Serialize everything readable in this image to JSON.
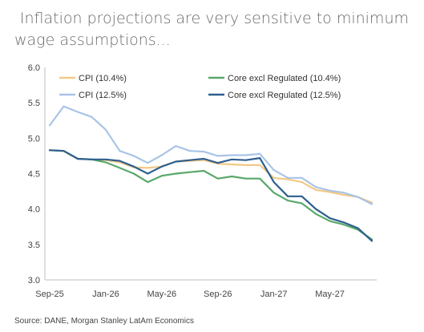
{
  "header": {
    "title_line1": "Inflation projections are very sensitive to minimum",
    "title_line2": "wage assumptions..."
  },
  "footer": {
    "source": "Source: DANE, Morgan Stanley LatAm Economics"
  },
  "chart_data": {
    "type": "line",
    "xlabel": "",
    "ylabel": "",
    "ylim": [
      3.0,
      6.0
    ],
    "yticks": [
      "6.0",
      "5.5",
      "5.0",
      "4.5",
      "4.0",
      "3.5",
      "3.0"
    ],
    "xticks": [
      "Sep-25",
      "Jan-26",
      "May-26",
      "Sep-26",
      "Jan-27",
      "May-27"
    ],
    "x": [
      "Sep-25",
      "Oct-25",
      "Nov-25",
      "Dec-25",
      "Jan-26",
      "Feb-26",
      "Mar-26",
      "Apr-26",
      "May-26",
      "Jun-26",
      "Jul-26",
      "Aug-26",
      "Sep-26",
      "Oct-26",
      "Nov-26",
      "Dec-26",
      "Jan-27",
      "Feb-27",
      "Mar-27",
      "Apr-27",
      "May-27",
      "Jun-27",
      "Jul-27",
      "Aug-27"
    ],
    "grid": false,
    "legend_position": "top",
    "series": [
      {
        "name": "CPI (10.4%)",
        "color": "#f2c987",
        "values": [
          4.83,
          4.82,
          4.71,
          4.7,
          4.69,
          4.66,
          4.59,
          4.58,
          4.6,
          4.67,
          4.68,
          4.69,
          4.64,
          4.63,
          4.62,
          4.62,
          4.44,
          4.42,
          4.38,
          4.27,
          4.24,
          4.2,
          4.17,
          4.09
        ]
      },
      {
        "name": "CPI (12.5%)",
        "color": "#a9c4e6",
        "values": [
          5.18,
          5.45,
          5.37,
          5.3,
          5.12,
          4.82,
          4.75,
          4.65,
          4.76,
          4.89,
          4.82,
          4.81,
          4.75,
          4.76,
          4.76,
          4.78,
          4.55,
          4.44,
          4.44,
          4.31,
          4.26,
          4.23,
          4.17,
          4.07
        ]
      },
      {
        "name": "Core excl Regulated (10.4%)",
        "color": "#5aa86a",
        "values": [
          4.83,
          4.82,
          4.71,
          4.7,
          4.66,
          4.58,
          4.5,
          4.38,
          4.47,
          4.5,
          4.52,
          4.54,
          4.43,
          4.46,
          4.43,
          4.43,
          4.23,
          4.12,
          4.08,
          3.93,
          3.83,
          3.78,
          3.71,
          3.57
        ]
      },
      {
        "name": "Core excl Regulated (12.5%)",
        "color": "#2e5f8f",
        "values": [
          4.83,
          4.82,
          4.71,
          4.7,
          4.7,
          4.68,
          4.6,
          4.5,
          4.6,
          4.67,
          4.69,
          4.71,
          4.65,
          4.7,
          4.69,
          4.72,
          4.38,
          4.18,
          4.18,
          4.0,
          3.87,
          3.81,
          3.73,
          3.55
        ]
      }
    ]
  }
}
